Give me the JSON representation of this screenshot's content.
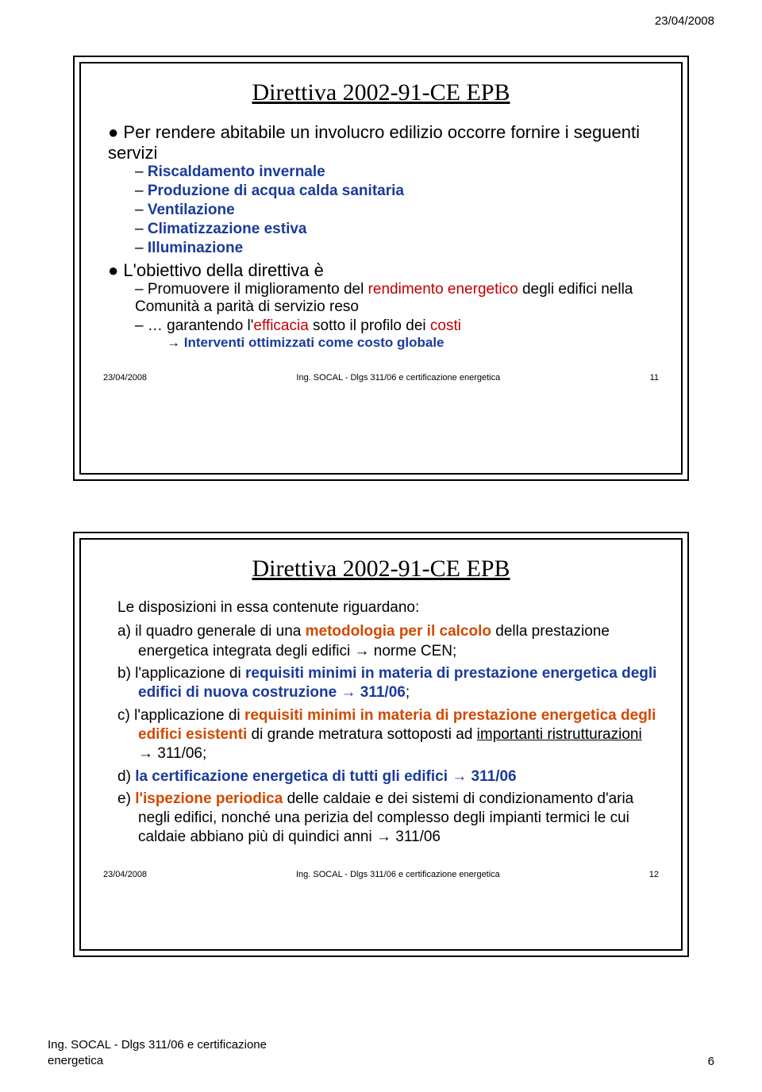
{
  "page_header_date": "23/04/2008",
  "slide1": {
    "title": "Direttiva 2002-91-CE  EPB",
    "b1": "Per rendere abitabile un involucro edilizio occorre fornire i seguenti servizi",
    "s1_1": "Riscaldamento invernale",
    "s1_2": "Produzione di acqua calda sanitaria",
    "s1_3": "Ventilazione",
    "s1_4": "Climatizzazione estiva",
    "s1_5": "Illuminazione",
    "b2": "L'obiettivo della direttiva è",
    "s2_1_a": "Promuovere il miglioramento del ",
    "s2_1_b": "rendimento energetico",
    "s2_1_c": " degli edifici nella Comunità a parità di servizio reso",
    "s2_2_a": "… garantendo l'",
    "s2_2_b": "efficacia",
    "s2_2_c": " sotto il profilo dei ",
    "s2_2_d": "costi",
    "s2_3": "Interventi ottimizzati come costo globale",
    "footer_date": "23/04/2008",
    "footer_text": "Ing. SOCAL - Dlgs 311/06 e certificazione energetica",
    "footer_num": "11"
  },
  "slide2": {
    "title": "Direttiva 2002-91-CE  EPB",
    "intro": "Le disposizioni in essa contenute riguardano:",
    "a_1": "a) il quadro generale di una ",
    "a_2": "metodologia per il calcolo",
    "a_3": " della prestazione energetica integrata degli edifici → norme CEN;",
    "b_1": "b) l'applicazione di ",
    "b_2": "requisiti minimi in materia di prestazione energetica degli edifici di nuova costruzione",
    "b_3": " → 311/06",
    "b_4": ";",
    "c_1": "c) l'applicazione di ",
    "c_2": "requisiti minimi in materia di prestazione energetica degli edifici esistenti",
    "c_3": " di grande metratura sottoposti ad ",
    "c_4": "importanti ristrutturazioni",
    "c_5": " → 311/06;",
    "d_1": "d) ",
    "d_2": "la certificazione energetica di tutti gli edifici → 311/06",
    "e_1": "e) ",
    "e_2": "l'ispezione periodica",
    "e_3": " delle caldaie e dei sistemi di condizionamento d'aria negli edifici, nonché una perizia del complesso degli impianti termici le cui caldaie abbiano più di quindici anni → 311/06",
    "footer_date": "23/04/2008",
    "footer_text": "Ing. SOCAL - Dlgs 311/06 e certificazione energetica",
    "footer_num": "12"
  },
  "page_footer": {
    "line1": "Ing. SOCAL - Dlgs 311/06 e certificazione",
    "line2": "energetica",
    "page_number": "6"
  }
}
